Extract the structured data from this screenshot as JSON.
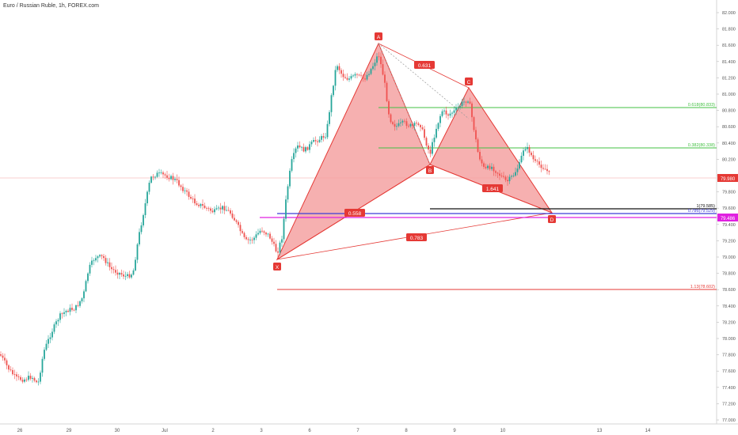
{
  "header": {
    "title": "Euro / Russian Ruble, 1h, FOREX.com"
  },
  "colors": {
    "up": "#26a69a",
    "down": "#ef5350",
    "pattern_fill": "#f5a2a2",
    "pattern_stroke": "#e53935",
    "fib_green": "#43c043",
    "fib_black": "#111111",
    "fib_blue": "#3d3dd6",
    "fib_magenta": "#e020e0",
    "fib_red": "#e53935",
    "price_tag": "#e53935",
    "magenta_tag": "#e020e0"
  },
  "price_axis": {
    "ticks": [
      "82.000",
      "81.800",
      "81.600",
      "81.400",
      "81.200",
      "81.000",
      "80.800",
      "80.600",
      "80.400",
      "80.200",
      "80.000",
      "79.800",
      "79.600",
      "79.400",
      "79.200",
      "79.000",
      "78.800",
      "78.600",
      "78.400",
      "78.200",
      "78.000",
      "77.800",
      "77.600",
      "77.400",
      "77.200",
      "77.000"
    ],
    "current_price": "79.980",
    "magenta_price": "79.486"
  },
  "time_axis": {
    "ticks": [
      "26",
      "29",
      "30",
      "Jul",
      "2",
      "3",
      "6",
      "7",
      "8",
      "9",
      "10",
      "13",
      "14"
    ]
  },
  "pattern_points": {
    "X": "X",
    "A": "A",
    "B": "B",
    "C": "C",
    "D": "D"
  },
  "ratios": {
    "xab": "0.558",
    "abc": "0.631",
    "bcd": "1.641",
    "xad": "0.783"
  },
  "fib_levels": {
    "c618": "0.618(80.833)",
    "c382": "0.382(80.338)",
    "one": "1(79.585)",
    "p786": "0.786(79.529)",
    "p113": "1.13(78.602)"
  },
  "chart_data": {
    "type": "candlestick",
    "title": "Euro / Russian Ruble, 1h, FOREX.com",
    "ylim": [
      76.9,
      82.1
    ],
    "pattern": {
      "X": 78.95,
      "A": 81.65,
      "B": 80.12,
      "C": 81.08,
      "D": 79.53
    },
    "levels": [
      80.833,
      80.338,
      79.585,
      79.529,
      79.486,
      78.602
    ],
    "last_price": 79.98
  }
}
